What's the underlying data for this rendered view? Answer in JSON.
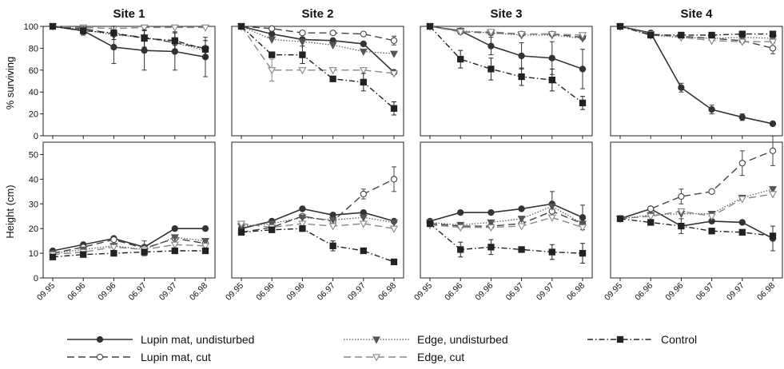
{
  "chart_data": {
    "type": "line",
    "x_categories": [
      "09.95",
      "06.96",
      "09.96",
      "06.97",
      "09.97",
      "06.98"
    ],
    "row_ylabels": [
      "% surviving",
      "Height (cm)"
    ],
    "row_ylims": [
      [
        0,
        100
      ],
      [
        0,
        55
      ]
    ],
    "row_yticks": [
      [
        0,
        20,
        40,
        60,
        80,
        100
      ],
      [
        0,
        10,
        20,
        30,
        40,
        50
      ]
    ],
    "sites": [
      {
        "title": "Site 1",
        "survival": [
          {
            "series": "lupin_undisturbed",
            "values": [
              100,
              96,
              81,
              78,
              77,
              72
            ],
            "errors": [
              0,
              3,
              15,
              18,
              17,
              18
            ]
          },
          {
            "series": "lupin_cut",
            "values": [
              100,
              98,
              93,
              90,
              85,
              80
            ],
            "errors": [
              0,
              0,
              0,
              0,
              0,
              0
            ]
          },
          {
            "series": "edge_undisturbed",
            "values": [
              100,
              97,
              92,
              90,
              85,
              78
            ],
            "errors": [
              0,
              0,
              0,
              0,
              0,
              0
            ]
          },
          {
            "series": "edge_cut",
            "values": [
              100,
              99,
              98,
              99,
              99,
              99
            ],
            "errors": [
              0,
              0,
              0,
              0,
              0,
              0
            ]
          },
          {
            "series": "control",
            "values": [
              100,
              96,
              94,
              89,
              87,
              79
            ],
            "errors": [
              0,
              4,
              6,
              8,
              8,
              8
            ]
          }
        ],
        "height": [
          {
            "series": "lupin_undisturbed",
            "values": [
              11,
              13.5,
              16,
              12.5,
              20,
              20
            ],
            "errors": [
              0,
              0,
              0,
              0,
              0,
              0
            ]
          },
          {
            "series": "lupin_cut",
            "values": [
              10,
              12.5,
              15.5,
              12,
              16,
              14
            ],
            "errors": [
              0,
              0,
              0,
              3,
              0,
              0
            ]
          },
          {
            "series": "edge_undisturbed",
            "values": [
              10,
              11.5,
              13,
              11.5,
              16.5,
              15
            ],
            "errors": [
              0,
              0,
              0,
              0,
              0,
              0
            ]
          },
          {
            "series": "edge_cut",
            "values": [
              9.5,
              10.5,
              12.5,
              11.5,
              13.5,
              13
            ],
            "errors": [
              0,
              0,
              0,
              0,
              0,
              0
            ]
          },
          {
            "series": "control",
            "values": [
              8.5,
              9.5,
              10,
              10.5,
              11,
              11
            ],
            "errors": [
              0,
              0,
              0,
              0,
              0,
              0
            ]
          }
        ]
      },
      {
        "title": "Site 2",
        "survival": [
          {
            "series": "lupin_undisturbed",
            "values": [
              100,
              93,
              88,
              87,
              84,
              58
            ],
            "errors": [
              0,
              0,
              0,
              0,
              0,
              0
            ]
          },
          {
            "series": "lupin_cut",
            "values": [
              100,
              98,
              94,
              94,
              93,
              87
            ],
            "errors": [
              0,
              0,
              0,
              0,
              0,
              4
            ]
          },
          {
            "series": "edge_undisturbed",
            "values": [
              100,
              88,
              86,
              83,
              77,
              75
            ],
            "errors": [
              0,
              0,
              0,
              0,
              0,
              0
            ]
          },
          {
            "series": "edge_cut",
            "values": [
              100,
              60,
              60,
              60,
              60,
              57
            ],
            "errors": [
              0,
              10,
              0,
              0,
              0,
              0
            ]
          },
          {
            "series": "control",
            "values": [
              100,
              74,
              74,
              52,
              49,
              25
            ],
            "errors": [
              0,
              0,
              8,
              0,
              8,
              6
            ]
          }
        ],
        "height": [
          {
            "series": "lupin_undisturbed",
            "values": [
              20,
              23,
              28,
              25.5,
              26.5,
              23
            ],
            "errors": [
              0,
              0,
              0,
              0,
              0,
              0
            ]
          },
          {
            "series": "lupin_cut",
            "values": [
              18.5,
              20.5,
              25,
              23,
              34,
              40
            ],
            "errors": [
              0,
              0,
              0,
              0,
              2,
              5
            ]
          },
          {
            "series": "edge_undisturbed",
            "values": [
              21,
              22,
              24.5,
              23.5,
              24.5,
              22.5
            ],
            "errors": [
              0,
              0,
              0,
              0,
              0,
              0
            ]
          },
          {
            "series": "edge_cut",
            "values": [
              22,
              20.5,
              22,
              21,
              22,
              20
            ],
            "errors": [
              0,
              0,
              0,
              0,
              0,
              0
            ]
          },
          {
            "series": "control",
            "values": [
              18.5,
              19.5,
              20,
              13,
              11,
              6.5
            ],
            "errors": [
              0,
              0,
              0,
              2,
              0,
              0
            ]
          }
        ]
      },
      {
        "title": "Site 3",
        "survival": [
          {
            "series": "lupin_undisturbed",
            "values": [
              100,
              96,
              82,
              73,
              71,
              61
            ],
            "errors": [
              0,
              0,
              8,
              12,
              15,
              18
            ]
          },
          {
            "series": "lupin_cut",
            "values": [
              100,
              95,
              94,
              93,
              93,
              90
            ],
            "errors": [
              0,
              0,
              0,
              0,
              0,
              0
            ]
          },
          {
            "series": "edge_undisturbed",
            "values": [
              100,
              96,
              94,
              92,
              92,
              89
            ],
            "errors": [
              0,
              0,
              0,
              0,
              0,
              0
            ]
          },
          {
            "series": "edge_cut",
            "values": [
              100,
              95,
              95,
              93,
              93,
              92
            ],
            "errors": [
              0,
              0,
              0,
              0,
              0,
              0
            ]
          },
          {
            "series": "control",
            "values": [
              100,
              70,
              61,
              54,
              51,
              30
            ],
            "errors": [
              0,
              8,
              10,
              8,
              10,
              6
            ]
          }
        ],
        "height": [
          {
            "series": "lupin_undisturbed",
            "values": [
              23,
              26.5,
              26.5,
              28,
              30,
              24.5
            ],
            "errors": [
              0,
              0,
              0,
              0,
              5,
              5
            ]
          },
          {
            "series": "lupin_cut",
            "values": [
              22,
              21,
              21,
              22,
              27,
              22
            ],
            "errors": [
              0,
              0,
              0,
              0,
              0,
              0
            ]
          },
          {
            "series": "edge_undisturbed",
            "values": [
              22.5,
              21.5,
              22.5,
              24,
              29,
              22
            ],
            "errors": [
              0,
              0,
              0,
              0,
              0,
              0
            ]
          },
          {
            "series": "edge_cut",
            "values": [
              21.5,
              20.5,
              20.5,
              21,
              24.5,
              20.5
            ],
            "errors": [
              0,
              0,
              0,
              0,
              0,
              0
            ]
          },
          {
            "series": "control",
            "values": [
              22,
              11.5,
              12.5,
              11.5,
              10.5,
              10
            ],
            "errors": [
              0,
              3,
              3,
              0,
              3,
              4
            ]
          }
        ]
      },
      {
        "title": "Site 4",
        "survival": [
          {
            "series": "lupin_undisturbed",
            "values": [
              100,
              94,
              44,
              24,
              17,
              11
            ],
            "errors": [
              0,
              0,
              4,
              4,
              3,
              0
            ]
          },
          {
            "series": "lupin_cut",
            "values": [
              100,
              93,
              91,
              89,
              87,
              80
            ],
            "errors": [
              0,
              0,
              0,
              0,
              0,
              5
            ]
          },
          {
            "series": "edge_undisturbed",
            "values": [
              100,
              92,
              90,
              89,
              90,
              89
            ],
            "errors": [
              0,
              0,
              0,
              0,
              0,
              0
            ]
          },
          {
            "series": "edge_cut",
            "values": [
              100,
              93,
              90,
              87,
              86,
              86
            ],
            "errors": [
              0,
              0,
              0,
              0,
              0,
              0
            ]
          },
          {
            "series": "control",
            "values": [
              100,
              92,
              92,
              92,
              93,
              93
            ],
            "errors": [
              0,
              0,
              0,
              0,
              0,
              0
            ]
          }
        ],
        "height": [
          {
            "series": "lupin_undisturbed",
            "values": [
              24,
              28,
              21,
              23,
              22.5,
              16
            ],
            "errors": [
              0,
              0,
              3,
              0,
              0,
              5
            ]
          },
          {
            "series": "lupin_cut",
            "values": [
              24,
              28,
              33,
              35,
              46.5,
              51.5
            ],
            "errors": [
              0,
              0,
              3,
              0,
              5,
              6
            ]
          },
          {
            "series": "edge_undisturbed",
            "values": [
              24,
              25.5,
              26,
              26,
              32.5,
              36
            ],
            "errors": [
              0,
              0,
              0,
              0,
              0,
              0
            ]
          },
          {
            "series": "edge_cut",
            "values": [
              24,
              25,
              27,
              25,
              32,
              34
            ],
            "errors": [
              0,
              0,
              0,
              0,
              0,
              0
            ]
          },
          {
            "series": "control",
            "values": [
              24,
              22.5,
              21,
              19,
              18.5,
              17
            ],
            "errors": [
              0,
              0,
              0,
              0,
              0,
              0
            ]
          }
        ]
      }
    ],
    "legend": {
      "placement": "bottom",
      "entries": [
        {
          "key": "lupin_undisturbed",
          "label": "Lupin mat, undisturbed",
          "line": "solid",
          "marker": "circle-filled",
          "color": "#333333"
        },
        {
          "key": "edge_undisturbed",
          "label": "Edge, undisturbed",
          "line": "dotted",
          "marker": "triangle-down-filled",
          "color": "#555555"
        },
        {
          "key": "control",
          "label": "Control",
          "line": "dashdot",
          "marker": "square-filled",
          "color": "#222222"
        },
        {
          "key": "lupin_cut",
          "label": "Lupin mat, cut",
          "line": "dashed",
          "marker": "circle-open",
          "color": "#444444"
        },
        {
          "key": "edge_cut",
          "label": "Edge, cut",
          "line": "dashed-light",
          "marker": "triangle-down-open",
          "color": "#888888"
        }
      ]
    }
  }
}
